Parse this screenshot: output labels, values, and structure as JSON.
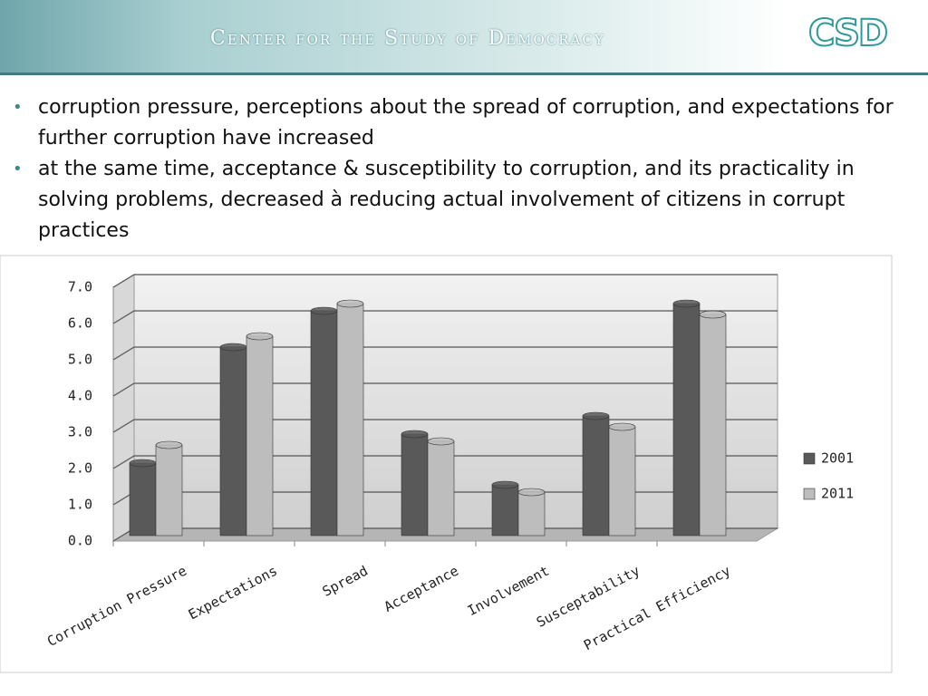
{
  "header": {
    "title": "Center for the Study of Democracy",
    "logo": "CSD"
  },
  "bullets": [
    "corruption pressure, perceptions about the spread of corruption, and expectations for further corruption have increased",
    "at the same time, acceptance & susceptibility to corruption, and its practicality in solving problems, decreased à reducing actual involvement of citizens in corrupt practices"
  ],
  "chart_data": {
    "type": "bar",
    "categories": [
      "Corruption Pressure",
      "Expectations",
      "Spread",
      "Acceptance",
      "Involvement",
      "Susceptability",
      "Practical Efficiency"
    ],
    "series": [
      {
        "name": "2001",
        "color": "#595959",
        "values": [
          2.0,
          5.2,
          6.2,
          2.8,
          1.4,
          3.3,
          6.4
        ]
      },
      {
        "name": "2011",
        "color": "#bdbdbd",
        "values": [
          2.5,
          5.5,
          6.4,
          2.6,
          1.2,
          3.0,
          6.1
        ]
      }
    ],
    "ylim": [
      0,
      7
    ],
    "yticks": [
      {
        "value": 0,
        "label": "0.0"
      },
      {
        "value": 1,
        "label": "1.0"
      },
      {
        "value": 2,
        "label": "2.0"
      },
      {
        "value": 3,
        "label": "3.0"
      },
      {
        "value": 4,
        "label": "4.0"
      },
      {
        "value": 5,
        "label": "5.0"
      },
      {
        "value": 6,
        "label": "6.0"
      },
      {
        "value": 7,
        "label": "7.0"
      }
    ],
    "grid": true,
    "legend": "right"
  }
}
